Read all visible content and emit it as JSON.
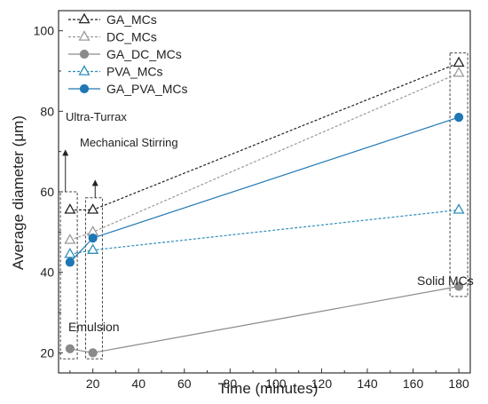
{
  "chart_data": {
    "type": "line",
    "xlabel": "Time (minutes)",
    "ylabel": "Average diameter (μm)",
    "xlim": [
      5,
      185
    ],
    "ylim": [
      15,
      105
    ],
    "xticks": [
      20,
      40,
      60,
      80,
      100,
      120,
      140,
      160,
      180
    ],
    "yticks": [
      20,
      40,
      60,
      80,
      100
    ],
    "legend_position": "top-left",
    "series": [
      {
        "name": "GA_MCs",
        "x": [
          10,
          20,
          180
        ],
        "y": [
          55.5,
          55.5,
          92
        ],
        "color": "#222222",
        "marker": "triangle-open",
        "line": "dashed"
      },
      {
        "name": "DC_MCs",
        "x": [
          10,
          20,
          180
        ],
        "y": [
          48,
          50,
          89.5
        ],
        "color": "#9a9a9a",
        "marker": "triangle-open",
        "line": "dashed"
      },
      {
        "name": "GA_DC_MCs",
        "x": [
          10,
          20,
          180
        ],
        "y": [
          21,
          20,
          36.5
        ],
        "color": "#8a8a8a",
        "marker": "circle-filled",
        "line": "solid"
      },
      {
        "name": "PVA_MCs",
        "x": [
          10,
          20,
          180
        ],
        "y": [
          44.5,
          45.5,
          55.5
        ],
        "color": "#2f8fb8",
        "marker": "triangle-open",
        "line": "dashed"
      },
      {
        "name": "GA_PVA_MCs",
        "x": [
          10,
          20,
          180
        ],
        "y": [
          42.5,
          48.5,
          78.5
        ],
        "color": "#1f77b4",
        "marker": "circle-filled",
        "line": "solid"
      }
    ],
    "annotations": {
      "ultra_turrax": "Ultra-Turrax",
      "mechanical_stirring": "Mechanical Stirring",
      "emulsion": "Emulsion",
      "solid_mcs": "Solid MCs"
    }
  }
}
